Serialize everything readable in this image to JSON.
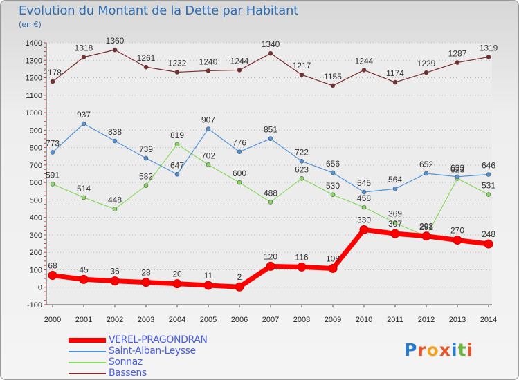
{
  "title": "Evolution du Montant de la Dette par Habitant",
  "unit": "(en €)",
  "logo": "Proxiti",
  "chart_data": {
    "type": "line",
    "title": "Evolution du Montant de la Dette par Habitant",
    "subtitle": "(en €)",
    "xlabel": "",
    "ylabel": "",
    "x": [
      "2000",
      "2001",
      "2002",
      "2003",
      "2004",
      "2005",
      "2006",
      "2007",
      "2008",
      "2009",
      "2010",
      "2011",
      "2012",
      "2013",
      "2014"
    ],
    "ylim": [
      -100,
      1400
    ],
    "yticks": [
      -100,
      0,
      100,
      200,
      300,
      400,
      500,
      600,
      700,
      800,
      900,
      1000,
      1100,
      1200,
      1300,
      1400
    ],
    "grid": "horizontal dotted",
    "legend_position": "bottom-left",
    "series": [
      {
        "name": "VEREL-PRAGONDRAN",
        "color": "#ff0000",
        "values": [
          68,
          45,
          36,
          28,
          20,
          11,
          2,
          120,
          116,
          108,
          330,
          307,
          293,
          270,
          248
        ]
      },
      {
        "name": "Saint-Alban-Leysse",
        "color": "#4f92d8",
        "values": [
          773,
          937,
          838,
          739,
          647,
          907,
          776,
          851,
          722,
          656,
          545,
          564,
          652,
          633,
          646
        ]
      },
      {
        "name": "Sonnaz",
        "color": "#88d960",
        "values": [
          591,
          514,
          448,
          582,
          819,
          702,
          600,
          488,
          623,
          530,
          458,
          369,
          291,
          623,
          531
        ]
      },
      {
        "name": "Bassens",
        "color": "#7a2a2a",
        "values": [
          1178,
          1318,
          1360,
          1261,
          1232,
          1240,
          1244,
          1340,
          1217,
          1155,
          1244,
          1174,
          1229,
          1287,
          1319
        ]
      }
    ]
  }
}
